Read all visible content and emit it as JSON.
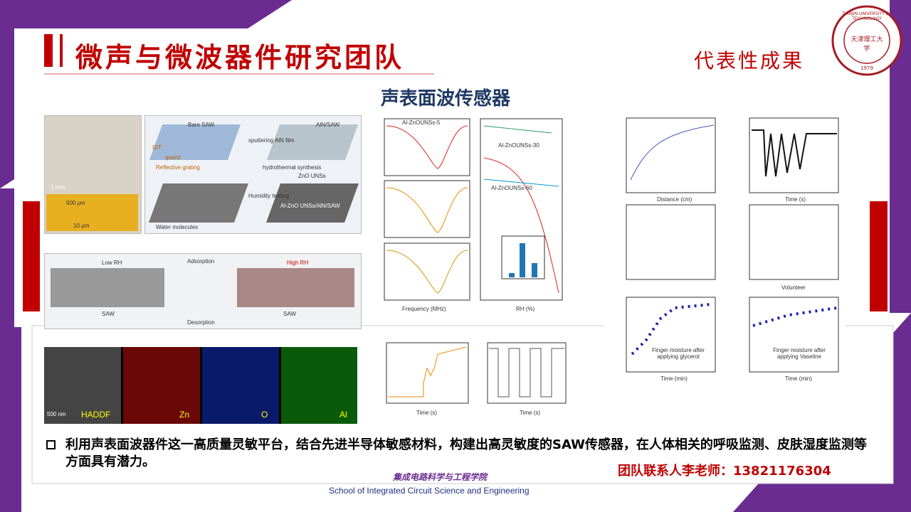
{
  "header": {
    "title": "微声与微波器件研究团队",
    "tag": "代表性成果"
  },
  "logo": {
    "ring": "TIANJIN UNIVERSITY OF TECHNOLOGY",
    "name": "天津理工大学",
    "year": "1979"
  },
  "section_title": "声表面波传感器",
  "figures": {
    "a": {
      "labels": [
        "1 mm",
        "500 μm",
        "10 μm"
      ]
    },
    "b": {
      "labels": [
        "Bare SAW",
        "AlN/SAW",
        "sputtering AlN film",
        "hydrothermal synthesis",
        "ZnO UNSs",
        "Humidity testing",
        "Al-ZnO UNSs/AlN/SAW",
        "Water molecules",
        "IDT",
        "quartz",
        "Reflective grating"
      ]
    },
    "c": {
      "labels": [
        "Low RH",
        "High RH",
        "Adsorption",
        "Desorption",
        "SAW",
        "SAW"
      ]
    },
    "d": {
      "labels": [
        "500 nm",
        "HADDF",
        "Zn",
        "O",
        "Al"
      ]
    },
    "curves": {
      "labels": [
        "Al-ZnOUNSs-5",
        "Al-ZnOUNSs-30",
        "Al-ZnOUNSs-60",
        "Frequency (MHz)",
        "RH (%)"
      ]
    },
    "time": {
      "labels": [
        "Time (s)",
        "Time (s)"
      ]
    },
    "right": {
      "labels": [
        "Distance (cm)",
        "Time (s)",
        "Volunteer",
        "Time (min)",
        "Time (min)",
        "Finger moisture after applying glycerol",
        "Finger moisture after applying Vaseline"
      ]
    }
  },
  "bullet": "利用声表面波器件这一高质量灵敏平台，结合先进半导体敏感材料，构建出高灵敏度的SAW传感器，在人体相关的呼吸监测、皮肤湿度监测等方面具有潜力。",
  "contact": "团队联系人李老师：13821176304",
  "footer": {
    "school_cn": "集成电路科学与工程学院",
    "school_en": "School of Integrated Circuit Science and Engineering"
  }
}
